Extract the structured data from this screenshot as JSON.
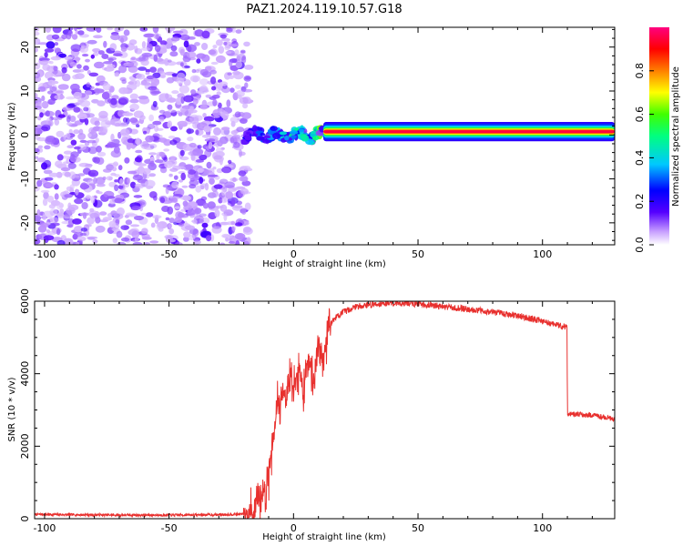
{
  "title": "PAZ1.2024.119.10.57.G18",
  "chart_data": [
    {
      "type": "heatmap",
      "xlabel": "Height of straight line (km)",
      "ylabel": "Frequency (Hz)",
      "xlim": [
        -104,
        129
      ],
      "ylim": [
        -25,
        24.5
      ],
      "xticks": [
        -100,
        -50,
        0,
        50,
        100
      ],
      "yticks": [
        -20,
        -10,
        0,
        10,
        20
      ],
      "colorbar": {
        "label": "Normalized spectral amplitude",
        "range": [
          0,
          1
        ],
        "ticks": [
          0.0,
          0.2,
          0.4,
          0.6,
          0.8
        ],
        "colors": [
          "#ffffff",
          "#c8a0ff",
          "#5500ff",
          "#0000ff",
          "#00c8ff",
          "#00ff80",
          "#40ff00",
          "#ffff00",
          "#ff8000",
          "#ff0000",
          "#ff0080"
        ]
      },
      "features": {
        "noise_region_x": [
          -104,
          -20
        ],
        "noise_amplitude": [
          0.0,
          0.25
        ],
        "transition_x": [
          -20,
          12
        ],
        "signal_band": {
          "x": [
            12,
            129
          ],
          "frequency": [
            0.0,
            1.5
          ],
          "peak_amplitude": 0.95
        }
      }
    },
    {
      "type": "line",
      "xlabel": "Height of straight line (km)",
      "ylabel": "SNR (10 * v/v)",
      "xlim": [
        -104,
        129
      ],
      "ylim": [
        0,
        6000
      ],
      "xticks": [
        -100,
        -50,
        0,
        50,
        100
      ],
      "yticks": [
        0,
        2000,
        4000,
        6000
      ],
      "color": "#e8302e",
      "series": [
        {
          "x": [
            -104,
            -90,
            -70,
            -50,
            -30,
            -20,
            -15,
            -13,
            -11,
            -9,
            -7,
            -5,
            -3,
            -1,
            0,
            2,
            4,
            6,
            8,
            10,
            12,
            14,
            16,
            18,
            20,
            25,
            30,
            35,
            40,
            50,
            60,
            70,
            80,
            90,
            100,
            105,
            109.9,
            110,
            115,
            120,
            125,
            129
          ],
          "y": [
            120,
            110,
            100,
            100,
            110,
            130,
            200,
            600,
            900,
            1800,
            3000,
            3500,
            3300,
            4000,
            3600,
            4200,
            3500,
            4600,
            3700,
            4800,
            4500,
            5200,
            5500,
            5600,
            5700,
            5850,
            5900,
            5930,
            5950,
            5930,
            5850,
            5780,
            5700,
            5600,
            5450,
            5350,
            5300,
            2900,
            2870,
            2850,
            2800,
            2750
          ]
        }
      ]
    }
  ]
}
